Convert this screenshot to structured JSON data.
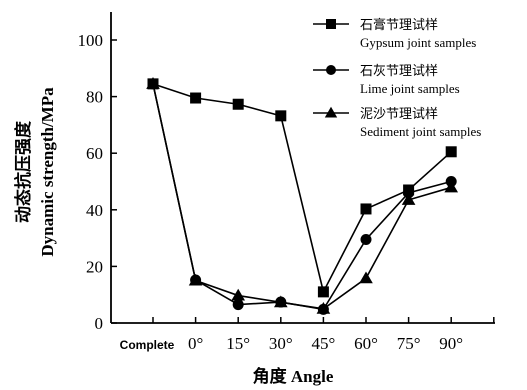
{
  "chart_data": {
    "type": "line",
    "categories": [
      "Complete",
      "0°",
      "15°",
      "30°",
      "45°",
      "60°",
      "75°",
      "90°"
    ],
    "series": [
      {
        "name": "石膏节理试样",
        "name_en": "Gypsum joint samples",
        "marker": "square",
        "values": [
          84.5,
          79.5,
          77.3,
          73.2,
          11.0,
          40.3,
          47.0,
          60.5
        ]
      },
      {
        "name": "石灰节理试样",
        "name_en": "Lime joint samples",
        "marker": "circle",
        "values": [
          84.5,
          15.2,
          6.5,
          7.4,
          4.8,
          29.5,
          46.0,
          50.0
        ]
      },
      {
        "name": "泥沙节理试样",
        "name_en": "Sediment joint samples",
        "marker": "triangle",
        "values": [
          84.5,
          15.0,
          9.7,
          7.3,
          5.0,
          15.8,
          43.5,
          47.9
        ]
      }
    ],
    "ylabel_cn": "动态抗压强度",
    "ylabel_en": "Dynamic strength/MPa",
    "xlabel": "角度 Angle",
    "yticks": [
      0,
      20,
      40,
      60,
      80,
      100
    ],
    "ylim": [
      0,
      100
    ],
    "legend_position": "top-right",
    "grid": false
  }
}
